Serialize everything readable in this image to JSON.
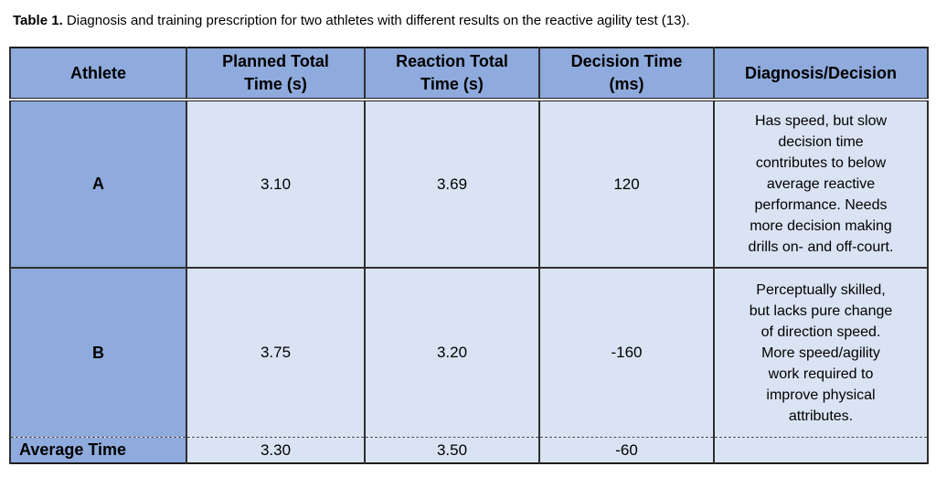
{
  "caption": {
    "label": "Table 1.",
    "text": "Diagnosis and training prescription for two athletes with different results on the reactive agility test (13)."
  },
  "table": {
    "headers": [
      "Athlete",
      "Planned Total\nTime (s)",
      "Reaction Total\nTime (s)",
      "Decision Time\n(ms)",
      "Diagnosis/Decision"
    ],
    "rows": [
      {
        "athlete": "A",
        "planned_total_time_s": "3.10",
        "reaction_total_time_s": "3.69",
        "decision_time_ms": "120",
        "diagnosis": "Has speed, but slow\ndecision time\ncontributes to below\naverage reactive\nperformance. Needs\nmore decision making\ndrills on- and off-court."
      },
      {
        "athlete": "B",
        "planned_total_time_s": "3.75",
        "reaction_total_time_s": "3.20",
        "decision_time_ms": "-160",
        "diagnosis": "Perceptually skilled,\nbut lacks pure change\nof direction speed.\nMore speed/agility\nwork required to\nimprove physical\nattributes."
      }
    ],
    "footer": {
      "label": "Average Time",
      "planned_total_time_s": "3.30",
      "reaction_total_time_s": "3.50",
      "decision_time_ms": "-60",
      "diagnosis": ""
    }
  },
  "colors": {
    "header_bg": "#8faadc",
    "data_bg": "#dae3f3",
    "border": "#1c1c1c",
    "text": "#000000"
  }
}
